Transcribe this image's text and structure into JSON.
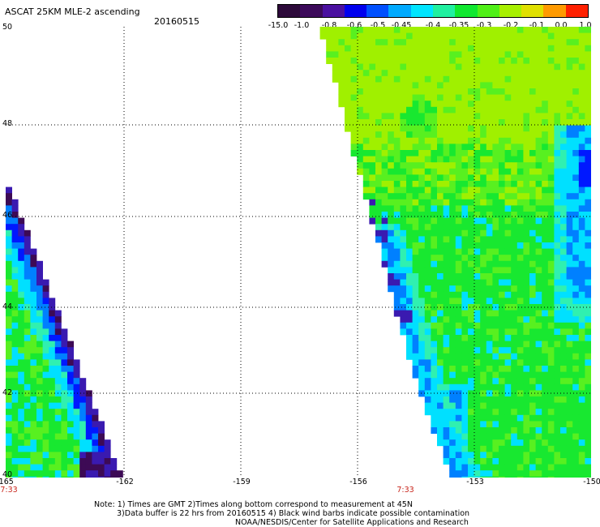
{
  "title": "ASCAT 25KM MLE-2 ascending",
  "date": "20160515",
  "colorbar": {
    "labels": [
      "-15.0",
      "-1.0",
      "-0.8",
      "-0.6",
      "-0.5",
      "-0.45",
      "-0.4",
      "-0.35",
      "-0.3",
      "-0.2",
      "-0.1",
      "0.0",
      "1.0"
    ],
    "colors": [
      "#2d0a3a",
      "#3c0a5a",
      "#4a10a0",
      "#0000ee",
      "#0050ff",
      "#00aaff",
      "#00e5ff",
      "#20f0a0",
      "#10e830",
      "#50f018",
      "#a8f000",
      "#e0e000",
      "#ff9a00",
      "#ff2000"
    ]
  },
  "lat_labels": [
    "50",
    "48",
    "46",
    "44",
    "42",
    "40"
  ],
  "lon_labels": [
    "-165",
    "-162",
    "-159",
    "-156",
    "-153",
    "-150"
  ],
  "time_labels": [
    "7:33",
    "7:33"
  ],
  "notes": {
    "line1": "Note: 1) Times are GMT 2)Times along bottom correspond to measurement at 45N",
    "line2": "3)Data buffer is 22 hrs from 20160515 4) Black wind barbs indicate possible contamination",
    "line3": "NOAA/NESDIS/Center for Satellite Applications and Research"
  },
  "map": {
    "lat_range": [
      40,
      50
    ],
    "lon_range": [
      -165,
      -150
    ],
    "grid": "dotted",
    "background": "#ffffff"
  }
}
